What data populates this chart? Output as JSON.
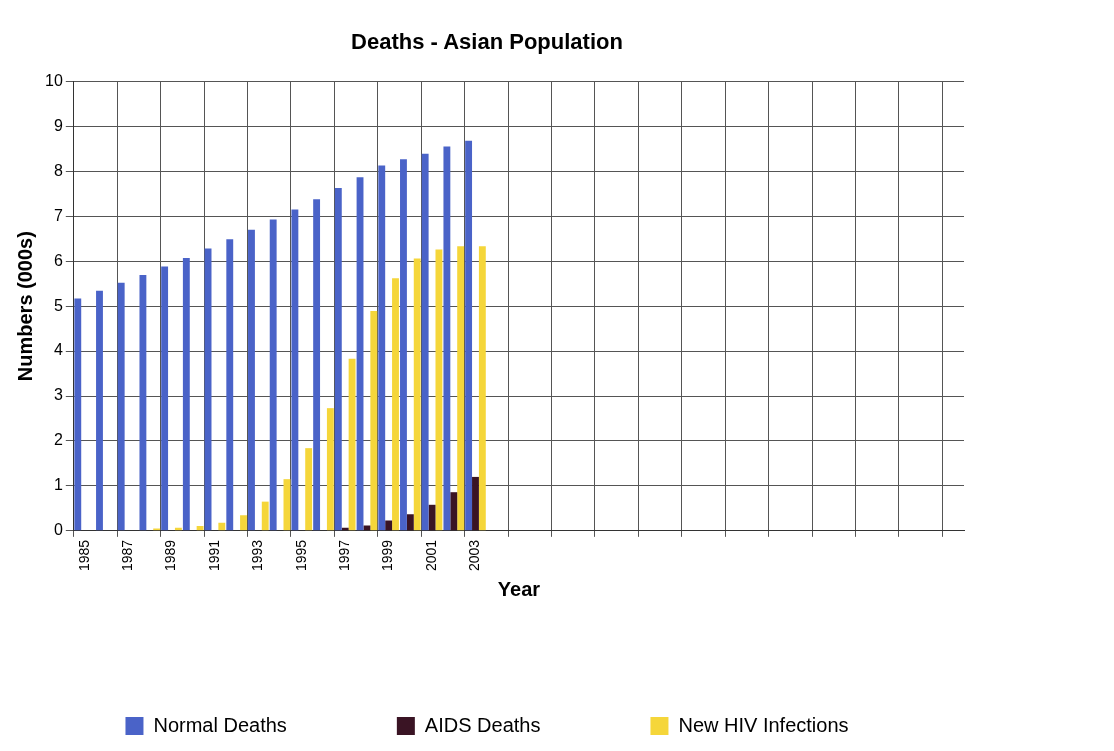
{
  "chart_data": {
    "type": "bar",
    "title": "Deaths - Asian Population",
    "xlabel": "Year",
    "ylabel": "Numbers (000s)",
    "categories": [
      "1985",
      null,
      "1987",
      null,
      "1989",
      null,
      "1991",
      null,
      "1993",
      null,
      "1995",
      null,
      "1997",
      null,
      "1999",
      null,
      "2001",
      null,
      "2003",
      null,
      null,
      null,
      null,
      null,
      null,
      null,
      null,
      null,
      null,
      null,
      null,
      null,
      null,
      null,
      null,
      null,
      null,
      null,
      null,
      null,
      null
    ],
    "series": [
      {
        "name": "Normal Deaths",
        "color": "#4a63c8",
        "values": [
          5.17,
          5.34,
          5.52,
          5.69,
          5.88,
          6.07,
          6.28,
          6.49,
          6.7,
          6.93,
          7.15,
          7.38,
          7.63,
          7.87,
          8.13,
          8.27,
          8.39,
          8.55,
          8.68,
          null,
          null,
          null,
          null,
          null,
          null,
          null,
          null,
          null,
          null,
          null,
          null,
          null,
          null,
          null,
          null,
          null,
          null,
          null,
          null,
          null,
          null
        ]
      },
      {
        "name": "AIDS Deaths",
        "color": "#3a1424",
        "values": [
          0,
          0,
          0,
          0,
          0,
          0,
          0,
          0,
          0,
          0,
          0,
          0,
          0.07,
          0.12,
          0.23,
          0.37,
          0.58,
          0.86,
          1.2,
          null,
          null,
          null,
          null,
          null,
          null,
          null,
          null,
          null,
          null,
          null,
          null,
          null,
          null,
          null,
          null,
          null,
          null,
          null,
          null,
          null,
          null
        ]
      },
      {
        "name": "New HIV Infections",
        "color": "#f5d63a",
        "values": [
          0,
          0,
          0,
          0.05,
          0.07,
          0.11,
          0.18,
          0.35,
          0.65,
          1.15,
          1.84,
          2.73,
          3.83,
          4.89,
          5.62,
          6.06,
          6.26,
          6.33,
          6.33,
          null,
          null,
          null,
          null,
          null,
          null,
          null,
          null,
          null,
          null,
          null,
          null,
          null,
          null,
          null,
          null,
          null,
          null,
          null,
          null,
          null,
          null
        ]
      }
    ],
    "ylim": [
      0,
      10
    ],
    "yticks": [
      0,
      1,
      2,
      3,
      4,
      5,
      6,
      7,
      8,
      9,
      10
    ],
    "grid": true,
    "legend": "bottom"
  }
}
